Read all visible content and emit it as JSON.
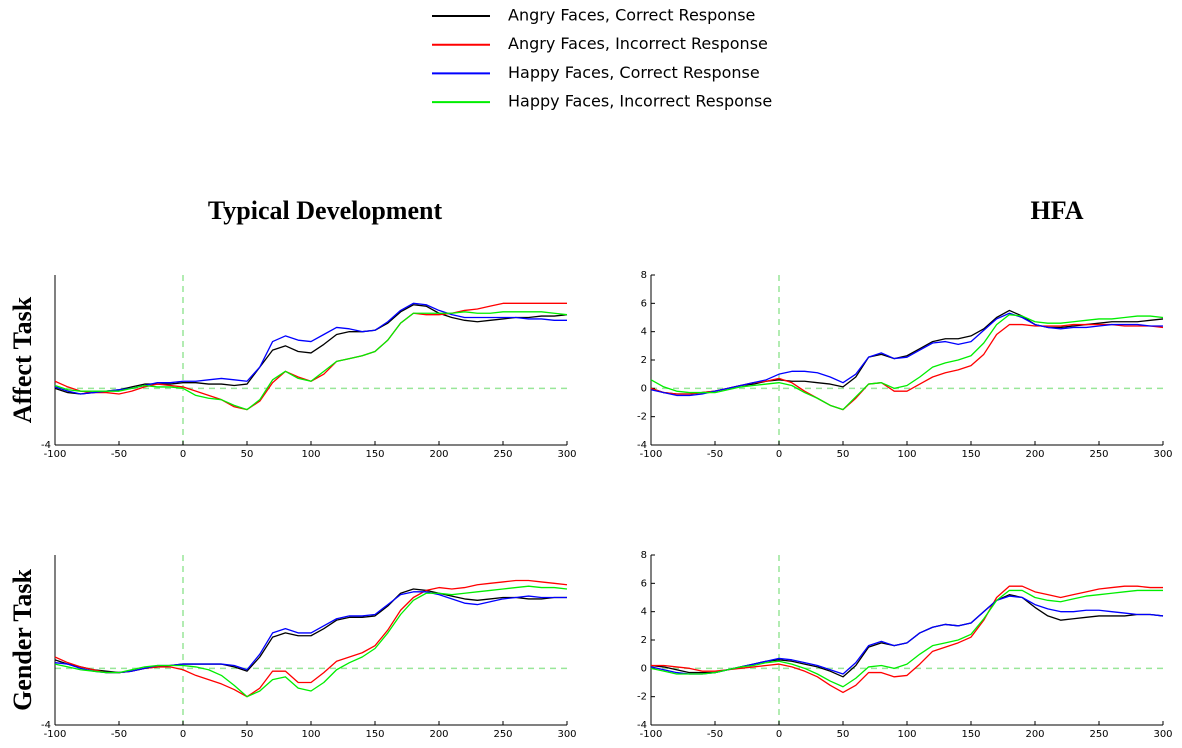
{
  "chart_data": [
    {
      "type": "line",
      "title": "Typical Development",
      "ylabel": "Affect Task",
      "xlim": [
        -100,
        300
      ],
      "xticks": [
        -100,
        -50,
        0,
        50,
        100,
        150,
        200,
        250,
        300
      ],
      "ylim": [
        -4,
        8
      ],
      "yticks": [
        -4
      ],
      "hline": 0,
      "vline": 0,
      "reference_color": "#99e699",
      "x": [
        -100,
        -90,
        -80,
        -70,
        -60,
        -50,
        -40,
        -30,
        -20,
        -10,
        0,
        10,
        20,
        30,
        40,
        50,
        60,
        70,
        80,
        90,
        100,
        110,
        120,
        130,
        140,
        150,
        160,
        170,
        180,
        190,
        200,
        210,
        220,
        230,
        240,
        250,
        260,
        270,
        280,
        290,
        300
      ],
      "series": [
        {
          "name": "Angry Faces, Correct Response",
          "color": "#000000",
          "values": [
            0.0,
            -0.3,
            -0.4,
            -0.3,
            -0.2,
            -0.1,
            0.1,
            0.3,
            0.3,
            0.3,
            0.4,
            0.4,
            0.3,
            0.3,
            0.2,
            0.3,
            1.5,
            2.7,
            3.0,
            2.6,
            2.5,
            3.1,
            3.8,
            4.0,
            4.0,
            4.1,
            4.6,
            5.4,
            5.9,
            5.8,
            5.3,
            5.0,
            4.8,
            4.7,
            4.8,
            4.9,
            5.0,
            5.0,
            5.1,
            5.1,
            5.2
          ]
        },
        {
          "name": "Angry Faces, Incorrect Response",
          "color": "#ff0000",
          "values": [
            0.5,
            0.1,
            -0.2,
            -0.3,
            -0.3,
            -0.4,
            -0.2,
            0.1,
            0.3,
            0.2,
            0.1,
            -0.2,
            -0.5,
            -0.8,
            -1.3,
            -1.5,
            -0.9,
            0.4,
            1.2,
            0.8,
            0.5,
            1.0,
            1.9,
            2.1,
            2.3,
            2.6,
            3.4,
            4.6,
            5.3,
            5.2,
            5.2,
            5.3,
            5.5,
            5.6,
            5.8,
            6.0,
            6.0,
            6.0,
            6.0,
            6.0,
            6.0
          ]
        },
        {
          "name": "Happy Faces, Correct Response",
          "color": "#0000ff",
          "values": [
            0.1,
            -0.2,
            -0.4,
            -0.3,
            -0.2,
            -0.1,
            0.0,
            0.2,
            0.4,
            0.4,
            0.5,
            0.5,
            0.6,
            0.7,
            0.6,
            0.5,
            1.5,
            3.3,
            3.7,
            3.4,
            3.3,
            3.8,
            4.3,
            4.2,
            4.0,
            4.1,
            4.7,
            5.5,
            6.0,
            5.9,
            5.5,
            5.2,
            5.0,
            5.0,
            5.0,
            5.0,
            5.0,
            4.9,
            4.9,
            4.8,
            4.8
          ]
        },
        {
          "name": "Happy Faces, Incorrect Response",
          "color": "#00ee00",
          "values": [
            0.2,
            -0.1,
            -0.2,
            -0.2,
            -0.2,
            -0.2,
            0.0,
            0.2,
            0.1,
            0.1,
            0.0,
            -0.5,
            -0.7,
            -0.8,
            -1.2,
            -1.5,
            -0.8,
            0.6,
            1.2,
            0.7,
            0.5,
            1.2,
            1.9,
            2.1,
            2.3,
            2.6,
            3.4,
            4.6,
            5.3,
            5.3,
            5.3,
            5.3,
            5.4,
            5.3,
            5.3,
            5.4,
            5.4,
            5.4,
            5.4,
            5.3,
            5.2
          ]
        }
      ]
    },
    {
      "type": "line",
      "title": "HFA",
      "xlim": [
        -100,
        300
      ],
      "xticks": [
        -100,
        -50,
        0,
        50,
        100,
        150,
        200,
        250,
        300
      ],
      "ylim": [
        -4,
        8
      ],
      "yticks": [
        -4,
        -2,
        0,
        2,
        4,
        6,
        8
      ],
      "hline": 0,
      "vline": 0,
      "reference_color": "#99e699",
      "x": [
        -100,
        -90,
        -80,
        -70,
        -60,
        -50,
        -40,
        -30,
        -20,
        -10,
        0,
        10,
        20,
        30,
        40,
        50,
        60,
        70,
        80,
        90,
        100,
        110,
        120,
        130,
        140,
        150,
        160,
        170,
        180,
        190,
        200,
        210,
        220,
        230,
        240,
        250,
        260,
        270,
        280,
        290,
        300
      ],
      "series": [
        {
          "name": "Angry Faces, Correct Response",
          "color": "#000000",
          "values": [
            0.0,
            -0.3,
            -0.4,
            -0.4,
            -0.3,
            -0.2,
            0.0,
            0.2,
            0.3,
            0.5,
            0.6,
            0.5,
            0.5,
            0.4,
            0.3,
            0.1,
            0.8,
            2.2,
            2.4,
            2.1,
            2.3,
            2.8,
            3.3,
            3.5,
            3.5,
            3.7,
            4.2,
            5.0,
            5.5,
            5.1,
            4.5,
            4.3,
            4.3,
            4.4,
            4.5,
            4.6,
            4.7,
            4.7,
            4.7,
            4.8,
            4.9
          ]
        },
        {
          "name": "Angry Faces, Incorrect Response",
          "color": "#ff0000",
          "values": [
            0.0,
            -0.3,
            -0.4,
            -0.4,
            -0.3,
            -0.2,
            0.0,
            0.2,
            0.4,
            0.5,
            0.7,
            0.4,
            -0.2,
            -0.7,
            -1.2,
            -1.5,
            -0.7,
            0.3,
            0.4,
            -0.2,
            -0.2,
            0.3,
            0.8,
            1.1,
            1.3,
            1.6,
            2.4,
            3.8,
            4.5,
            4.5,
            4.4,
            4.4,
            4.4,
            4.5,
            4.5,
            4.5,
            4.5,
            4.4,
            4.4,
            4.4,
            4.3
          ]
        },
        {
          "name": "Happy Faces, Correct Response",
          "color": "#0000ff",
          "values": [
            -0.1,
            -0.3,
            -0.5,
            -0.5,
            -0.4,
            -0.2,
            0.0,
            0.2,
            0.4,
            0.6,
            1.0,
            1.2,
            1.2,
            1.1,
            0.8,
            0.4,
            1.0,
            2.2,
            2.5,
            2.1,
            2.2,
            2.7,
            3.2,
            3.3,
            3.1,
            3.3,
            4.1,
            4.9,
            5.3,
            5.0,
            4.5,
            4.3,
            4.2,
            4.3,
            4.3,
            4.4,
            4.5,
            4.5,
            4.5,
            4.4,
            4.4
          ]
        },
        {
          "name": "Happy Faces, Incorrect Response",
          "color": "#00ee00",
          "values": [
            0.6,
            0.1,
            -0.2,
            -0.3,
            -0.3,
            -0.3,
            -0.1,
            0.1,
            0.2,
            0.3,
            0.4,
            0.2,
            -0.3,
            -0.7,
            -1.2,
            -1.5,
            -0.6,
            0.3,
            0.4,
            0.0,
            0.2,
            0.8,
            1.5,
            1.8,
            2.0,
            2.3,
            3.2,
            4.5,
            5.2,
            5.1,
            4.7,
            4.6,
            4.6,
            4.7,
            4.8,
            4.9,
            4.9,
            5.0,
            5.1,
            5.1,
            5.0
          ]
        }
      ]
    },
    {
      "type": "line",
      "ylabel": "Gender Task",
      "xlim": [
        -100,
        300
      ],
      "xticks": [
        -100,
        -50,
        0,
        50,
        100,
        150,
        200,
        250,
        300
      ],
      "ylim": [
        -4,
        8
      ],
      "yticks": [
        -4
      ],
      "hline": 0,
      "vline": 0,
      "reference_color": "#99e699",
      "x": [
        -100,
        -90,
        -80,
        -70,
        -60,
        -50,
        -40,
        -30,
        -20,
        -10,
        0,
        10,
        20,
        30,
        40,
        50,
        60,
        70,
        80,
        90,
        100,
        110,
        120,
        130,
        140,
        150,
        160,
        170,
        180,
        190,
        200,
        210,
        220,
        230,
        240,
        250,
        260,
        270,
        280,
        290,
        300
      ],
      "series": [
        {
          "name": "Angry Faces, Correct Response",
          "color": "#000000",
          "values": [
            0.6,
            0.3,
            0.1,
            -0.1,
            -0.2,
            -0.3,
            -0.2,
            0.0,
            0.1,
            0.2,
            0.3,
            0.3,
            0.3,
            0.3,
            0.1,
            -0.2,
            0.8,
            2.2,
            2.5,
            2.3,
            2.3,
            2.8,
            3.4,
            3.6,
            3.6,
            3.7,
            4.4,
            5.3,
            5.6,
            5.5,
            5.3,
            5.1,
            4.9,
            4.8,
            4.9,
            5.0,
            5.0,
            4.9,
            4.9,
            5.0,
            5.0
          ]
        },
        {
          "name": "Angry Faces, Incorrect Response",
          "color": "#ff0000",
          "values": [
            0.8,
            0.4,
            0.1,
            -0.1,
            -0.3,
            -0.3,
            -0.2,
            0.0,
            0.1,
            0.1,
            -0.1,
            -0.5,
            -0.8,
            -1.1,
            -1.5,
            -2.0,
            -1.4,
            -0.2,
            -0.2,
            -1.0,
            -1.0,
            -0.3,
            0.5,
            0.8,
            1.1,
            1.6,
            2.7,
            4.1,
            5.0,
            5.5,
            5.7,
            5.6,
            5.7,
            5.9,
            6.0,
            6.1,
            6.2,
            6.2,
            6.1,
            6.0,
            5.9
          ]
        },
        {
          "name": "Happy Faces, Correct Response",
          "color": "#0000ff",
          "values": [
            0.4,
            0.3,
            0.0,
            -0.2,
            -0.3,
            -0.3,
            -0.2,
            0.0,
            0.2,
            0.2,
            0.3,
            0.3,
            0.3,
            0.3,
            0.2,
            -0.1,
            1.0,
            2.5,
            2.8,
            2.5,
            2.5,
            3.0,
            3.5,
            3.7,
            3.7,
            3.8,
            4.5,
            5.2,
            5.4,
            5.4,
            5.2,
            4.9,
            4.6,
            4.5,
            4.7,
            4.9,
            5.0,
            5.1,
            5.0,
            5.0,
            5.0
          ]
        },
        {
          "name": "Happy Faces, Incorrect Response",
          "color": "#00ee00",
          "values": [
            0.3,
            0.1,
            -0.1,
            -0.2,
            -0.3,
            -0.3,
            -0.1,
            0.1,
            0.2,
            0.2,
            0.2,
            0.1,
            -0.1,
            -0.5,
            -1.2,
            -2.0,
            -1.6,
            -0.8,
            -0.6,
            -1.4,
            -1.6,
            -1.0,
            -0.1,
            0.4,
            0.8,
            1.4,
            2.5,
            3.8,
            4.8,
            5.3,
            5.3,
            5.2,
            5.3,
            5.4,
            5.5,
            5.6,
            5.7,
            5.8,
            5.7,
            5.7,
            5.6
          ]
        }
      ]
    },
    {
      "type": "line",
      "xlim": [
        -100,
        300
      ],
      "xticks": [
        -100,
        -50,
        0,
        50,
        100,
        150,
        200,
        250,
        300
      ],
      "ylim": [
        -4,
        8
      ],
      "yticks": [
        -4,
        -2,
        0,
        2,
        4,
        6,
        8
      ],
      "hline": 0,
      "vline": 0,
      "reference_color": "#99e699",
      "x": [
        -100,
        -90,
        -80,
        -70,
        -60,
        -50,
        -40,
        -30,
        -20,
        -10,
        0,
        10,
        20,
        30,
        40,
        50,
        60,
        70,
        80,
        90,
        100,
        110,
        120,
        130,
        140,
        150,
        160,
        170,
        180,
        190,
        200,
        210,
        220,
        230,
        240,
        250,
        260,
        270,
        280,
        290,
        300
      ],
      "series": [
        {
          "name": "Angry Faces, Correct Response",
          "color": "#000000",
          "values": [
            0.2,
            0.1,
            -0.1,
            -0.3,
            -0.3,
            -0.3,
            -0.1,
            0.1,
            0.3,
            0.5,
            0.6,
            0.5,
            0.3,
            0.1,
            -0.2,
            -0.6,
            0.2,
            1.5,
            1.8,
            1.6,
            1.8,
            2.5,
            2.9,
            3.1,
            3.0,
            3.2,
            4.0,
            4.8,
            5.2,
            5.0,
            4.3,
            3.7,
            3.4,
            3.5,
            3.6,
            3.7,
            3.7,
            3.7,
            3.8,
            3.8,
            3.7
          ]
        },
        {
          "name": "Angry Faces, Incorrect Response",
          "color": "#ff0000",
          "values": [
            0.2,
            0.2,
            0.1,
            0.0,
            -0.2,
            -0.2,
            -0.1,
            0.0,
            0.1,
            0.2,
            0.3,
            0.1,
            -0.2,
            -0.6,
            -1.2,
            -1.7,
            -1.2,
            -0.3,
            -0.3,
            -0.6,
            -0.5,
            0.3,
            1.2,
            1.5,
            1.8,
            2.2,
            3.4,
            5.0,
            5.8,
            5.8,
            5.4,
            5.2,
            5.0,
            5.2,
            5.4,
            5.6,
            5.7,
            5.8,
            5.8,
            5.7,
            5.7
          ]
        },
        {
          "name": "Happy Faces, Correct Response",
          "color": "#0000ff",
          "values": [
            0.1,
            -0.1,
            -0.3,
            -0.4,
            -0.4,
            -0.3,
            -0.1,
            0.1,
            0.3,
            0.5,
            0.7,
            0.6,
            0.4,
            0.2,
            -0.1,
            -0.4,
            0.4,
            1.6,
            1.9,
            1.6,
            1.8,
            2.5,
            2.9,
            3.1,
            3.0,
            3.2,
            4.0,
            4.8,
            5.1,
            5.0,
            4.5,
            4.2,
            4.0,
            4.0,
            4.1,
            4.1,
            4.0,
            3.9,
            3.8,
            3.8,
            3.7
          ]
        },
        {
          "name": "Happy Faces, Incorrect Response",
          "color": "#00ee00",
          "values": [
            0.0,
            -0.2,
            -0.4,
            -0.4,
            -0.4,
            -0.3,
            -0.1,
            0.1,
            0.2,
            0.4,
            0.5,
            0.3,
            0.0,
            -0.4,
            -0.9,
            -1.3,
            -0.7,
            0.1,
            0.2,
            0.0,
            0.3,
            1.0,
            1.6,
            1.8,
            2.0,
            2.4,
            3.5,
            4.8,
            5.5,
            5.5,
            5.0,
            4.8,
            4.7,
            4.9,
            5.1,
            5.2,
            5.3,
            5.4,
            5.5,
            5.5,
            5.5
          ]
        }
      ]
    }
  ]
}
